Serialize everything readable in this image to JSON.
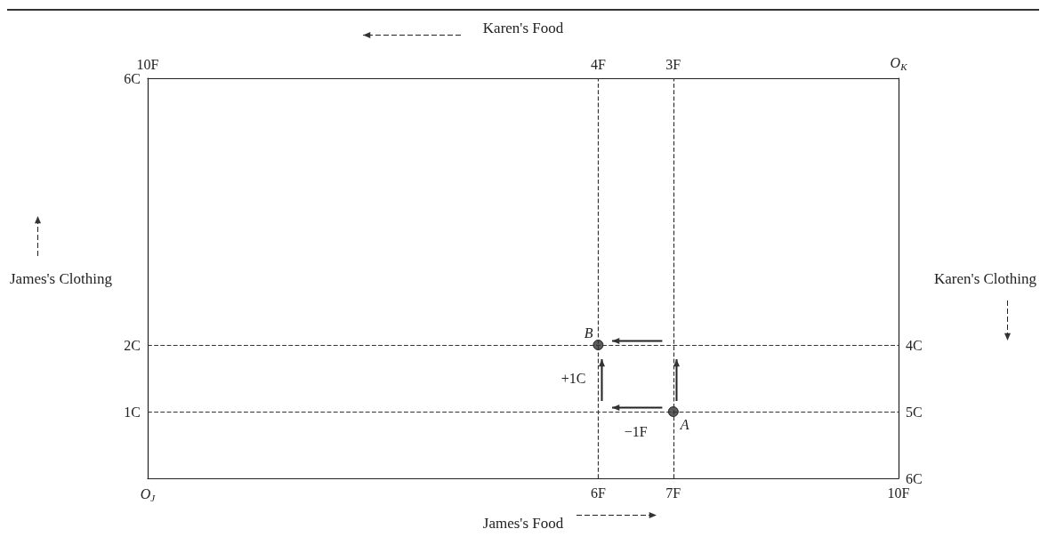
{
  "chart_data": {
    "type": "scatter",
    "xlabel": "James's Food",
    "x2label": "Karen's Food",
    "ylabel": "James's Clothing",
    "y2label": "Karen's Clothing",
    "x": [
      7,
      6
    ],
    "values": [
      1,
      2
    ],
    "color": "#333333",
    "xlim": [
      0,
      10
    ],
    "xticks": [
      {
        "value": 0,
        "label": "O$_{J}$"
      },
      {
        "value": 6,
        "label": "6F"
      },
      {
        "value": 7,
        "label": "7F"
      },
      {
        "value": 10,
        "label": "10F"
      }
    ],
    "x2lim": [
      10,
      0
    ],
    "x2ticks": [
      {
        "value": 10,
        "label": "10F"
      },
      {
        "value": 4,
        "label": "4F"
      },
      {
        "value": 3,
        "label": "3F"
      },
      {
        "value": 0,
        "label": "O$_{K}$"
      }
    ],
    "ylim": [
      0,
      6
    ],
    "yticks": [
      {
        "value": 1,
        "label": "1C"
      },
      {
        "value": 2,
        "label": "2C"
      },
      {
        "value": 6,
        "label": "6C"
      }
    ],
    "y2lim": [
      6,
      0
    ],
    "y2ticks": [
      {
        "value": 6,
        "label": "6C"
      },
      {
        "value": 5,
        "label": "5C"
      },
      {
        "value": 4,
        "label": "4C"
      }
    ],
    "ref_lines": [
      {
        "axis": "x",
        "value": 6,
        "line_style": "dashed"
      },
      {
        "axis": "x",
        "value": 7,
        "line_style": "dashed"
      },
      {
        "axis": "y",
        "value": 1,
        "line_style": "dashed"
      },
      {
        "axis": "y",
        "value": 2,
        "line_style": "dashed"
      }
    ],
    "annotations": [
      {
        "text": "A",
        "x": 7,
        "y": 1
      },
      {
        "text": "B",
        "x": 6,
        "y": 2
      },
      {
        "text": "−1F",
        "x": 6.5,
        "y": 1
      },
      {
        "text": "+1C",
        "x": 6,
        "y": 1.5
      }
    ],
    "marker": "circle"
  }
}
